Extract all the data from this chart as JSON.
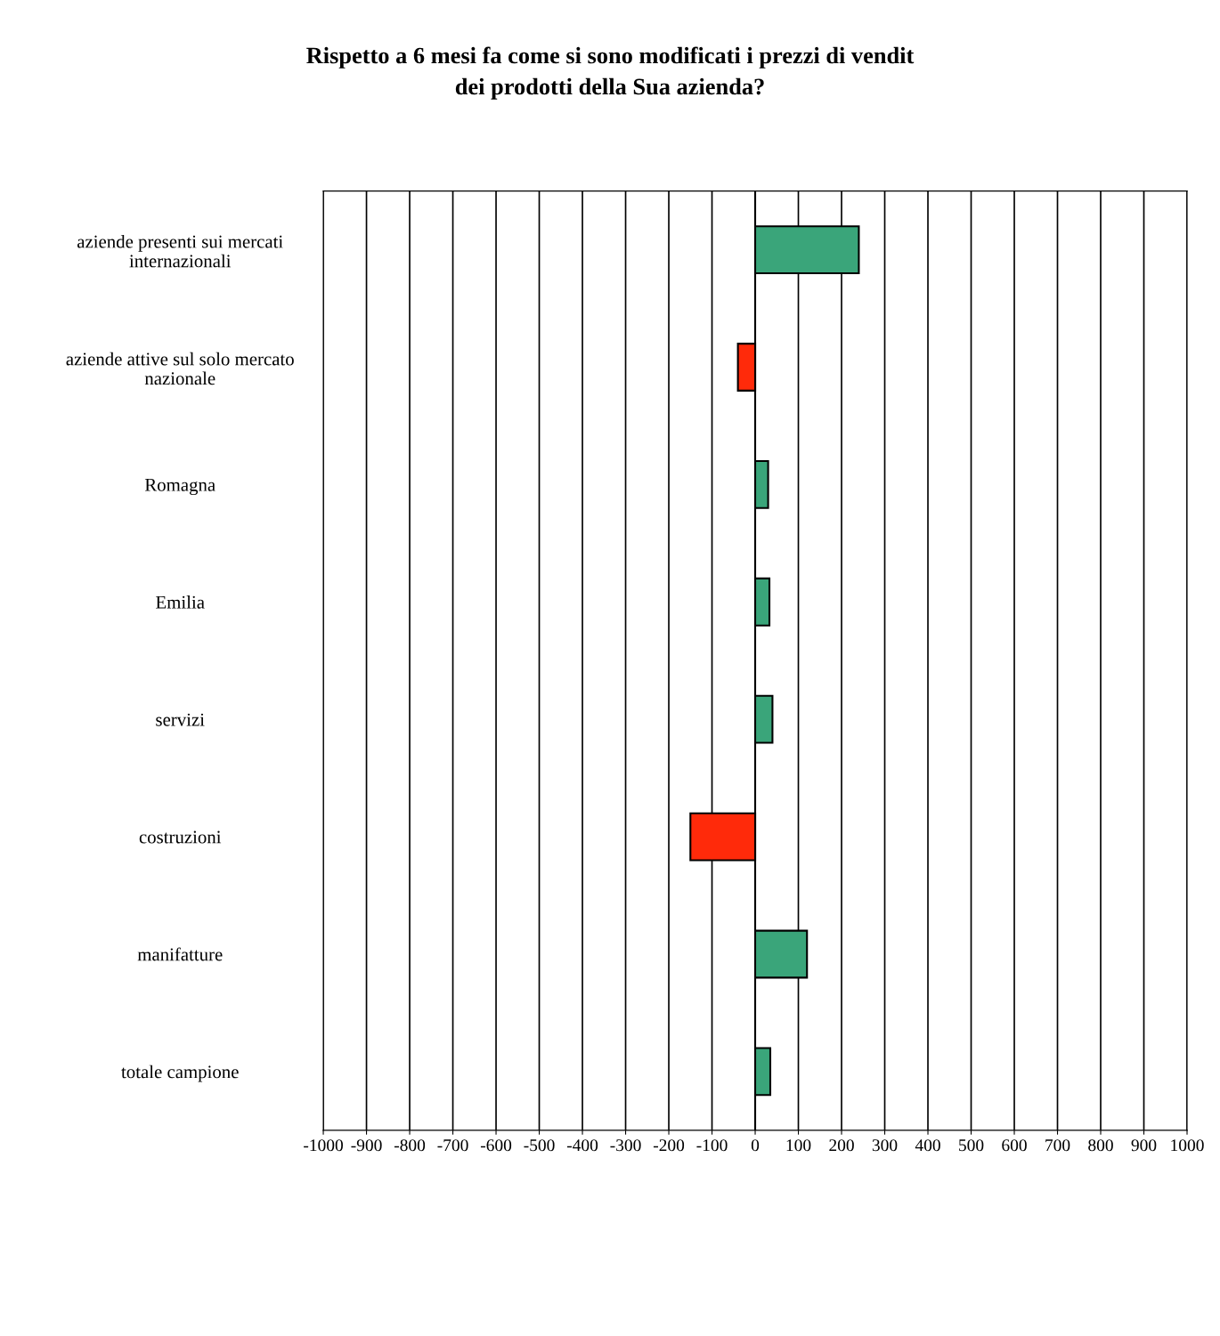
{
  "chart_data": {
    "type": "bar",
    "orientation": "horizontal",
    "title": "Rispetto a 6 mesi fa come si sono modificati i prezzi di vendit\ndei prodotti della Sua azienda?",
    "categories": [
      "aziende presenti sui mercati\ninternazionali",
      "aziende attive sul solo mercato\nnazionale",
      "Romagna",
      "Emilia",
      "servizi",
      "costruzioni",
      "manifatture",
      "totale campione"
    ],
    "values": [
      240,
      -40,
      30,
      33,
      40,
      -150,
      120,
      35
    ],
    "colors": [
      "#3aa57a",
      "#ff2a0a",
      "#3aa57a",
      "#3aa57a",
      "#3aa57a",
      "#ff2a0a",
      "#3aa57a",
      "#3aa57a"
    ],
    "xlim": [
      -1000,
      1000
    ],
    "xticks": [
      -1000,
      -900,
      -800,
      -700,
      -600,
      -500,
      -400,
      -300,
      -200,
      -100,
      0,
      100,
      200,
      300,
      400,
      500,
      600,
      700,
      800,
      900,
      1000
    ],
    "grid": "x",
    "legend": false
  }
}
